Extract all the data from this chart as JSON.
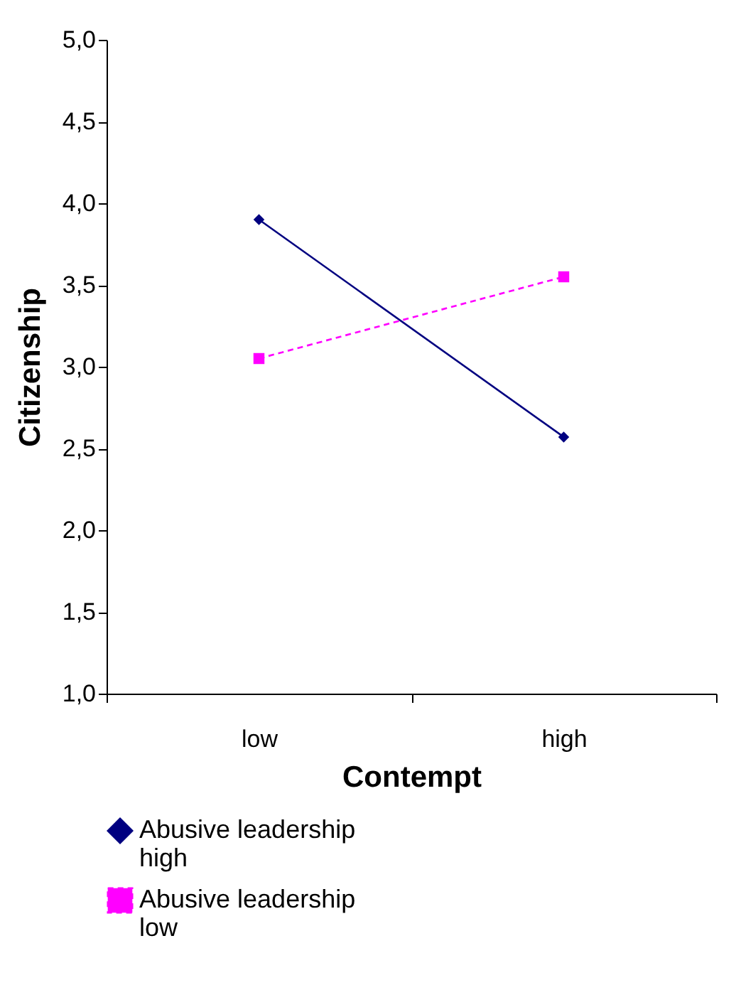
{
  "chart_data": {
    "type": "line",
    "xlabel": "Contempt",
    "ylabel": "Citizenship",
    "categories": [
      "low",
      "high"
    ],
    "series": [
      {
        "name": "Abusive leadership high",
        "color": "#000080",
        "values": [
          3.9,
          2.57
        ],
        "marker": "diamond",
        "line_style": "solid"
      },
      {
        "name": "Abusive leadership low",
        "color": "#ff00ff",
        "values": [
          3.05,
          3.55
        ],
        "marker": "square",
        "line_style": "dashed"
      }
    ],
    "ylim": [
      1,
      5
    ],
    "yticks": [
      {
        "value": 1,
        "label": "1,0"
      },
      {
        "value": 1.5,
        "label": "1,5"
      },
      {
        "value": 2,
        "label": "2,0"
      },
      {
        "value": 2.5,
        "label": "2,5"
      },
      {
        "value": 3,
        "label": "3,0"
      },
      {
        "value": 3.5,
        "label": "3,5"
      },
      {
        "value": 4,
        "label": "4,0"
      },
      {
        "value": 4.5,
        "label": "4,5"
      },
      {
        "value": 5,
        "label": "5,0"
      }
    ],
    "grid": false,
    "legend": "bottom"
  }
}
